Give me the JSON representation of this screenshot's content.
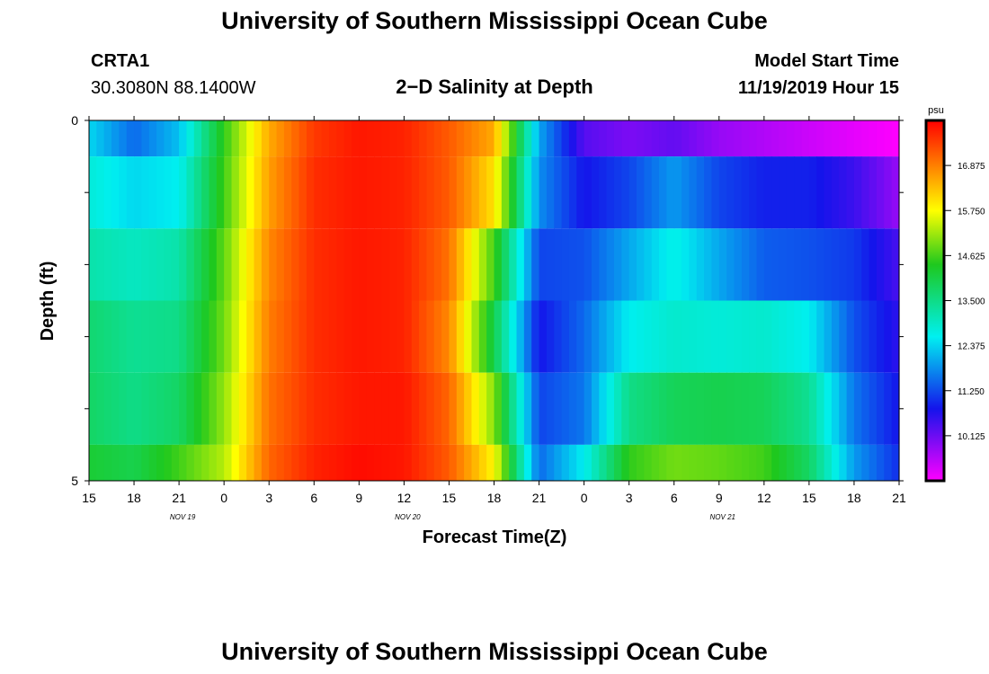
{
  "page": {
    "title_top": "University of Southern Mississippi Ocean Cube",
    "title_bottom": "University of Southern Mississippi Ocean Cube",
    "station_id": "CRTA1",
    "station_coords": "30.3080N 88.1400W",
    "chart_title": "2−D Salinity at Depth",
    "model_start_label": "Model Start Time",
    "model_start_value": "11/19/2019 Hour 15"
  },
  "chart_data": {
    "type": "heatmap",
    "title": "2-D Salinity at Depth",
    "xlabel": "Forecast Time(Z)",
    "ylabel": "Depth (ft)",
    "x_tick_labels": [
      "15",
      "18",
      "21",
      "0",
      "3",
      "6",
      "9",
      "12",
      "15",
      "18",
      "21",
      "0",
      "3",
      "6",
      "9",
      "12",
      "15",
      "18",
      "21"
    ],
    "date_labels": [
      {
        "text": "NOV 19",
        "tick_index": 2
      },
      {
        "text": "NOV 20",
        "tick_index": 7
      },
      {
        "text": "NOV 21",
        "tick_index": 14
      }
    ],
    "x_range_hours": [
      0,
      54
    ],
    "y_tick_labels": [
      "0",
      "5"
    ],
    "y_range_ft": [
      0,
      5
    ],
    "colorbar": {
      "unit": "psu",
      "min": 9.0,
      "max": 18.0,
      "tick_values": [
        10.125,
        11.25,
        12.375,
        13.5,
        14.625,
        15.75,
        16.875
      ],
      "tick_labels": [
        "10.125",
        "11.250",
        "12.375",
        "13.500",
        "14.625",
        "15.750",
        "16.875"
      ]
    },
    "hours": [
      0,
      3,
      6,
      9,
      12,
      15,
      18,
      21,
      24,
      27,
      30,
      33,
      36,
      39,
      42,
      45,
      48,
      51,
      54
    ],
    "depth_bands_ft": [
      "0-0.5",
      "0.5-1.5",
      "1.5-2.5",
      "2.5-3.5",
      "3.5-4.5",
      "4.5-5"
    ],
    "salinity_psu": [
      [
        12.4,
        11.5,
        12.2,
        14.5,
        16.5,
        17.5,
        17.8,
        17.7,
        17.2,
        16.5,
        12.0,
        10.3,
        10.0,
        10.2,
        9.8,
        9.6,
        9.4,
        9.2,
        9.0
      ],
      [
        12.8,
        12.4,
        12.6,
        14.6,
        16.6,
        17.6,
        17.8,
        17.7,
        17.2,
        16.0,
        11.8,
        10.8,
        11.2,
        11.9,
        11.2,
        10.9,
        10.9,
        10.5,
        9.8
      ],
      [
        13.2,
        13.0,
        13.2,
        14.8,
        16.8,
        17.6,
        17.8,
        17.7,
        17.0,
        14.6,
        11.2,
        11.3,
        12.0,
        12.7,
        12.0,
        11.4,
        11.3,
        11.1,
        10.4
      ],
      [
        13.7,
        13.4,
        13.5,
        14.9,
        16.9,
        17.6,
        17.8,
        17.7,
        16.8,
        14.0,
        10.8,
        11.5,
        12.6,
        12.9,
        12.8,
        12.9,
        12.6,
        11.3,
        10.6
      ],
      [
        13.8,
        13.5,
        13.8,
        15.1,
        17.0,
        17.6,
        17.8,
        17.8,
        17.1,
        15.0,
        11.2,
        11.6,
        13.5,
        13.9,
        14.0,
        13.9,
        13.4,
        11.6,
        10.8
      ],
      [
        14.2,
        14.0,
        14.6,
        15.3,
        17.1,
        17.7,
        17.9,
        17.8,
        17.2,
        15.8,
        11.5,
        12.6,
        14.5,
        14.9,
        14.8,
        14.6,
        13.8,
        11.9,
        11.0
      ]
    ]
  }
}
